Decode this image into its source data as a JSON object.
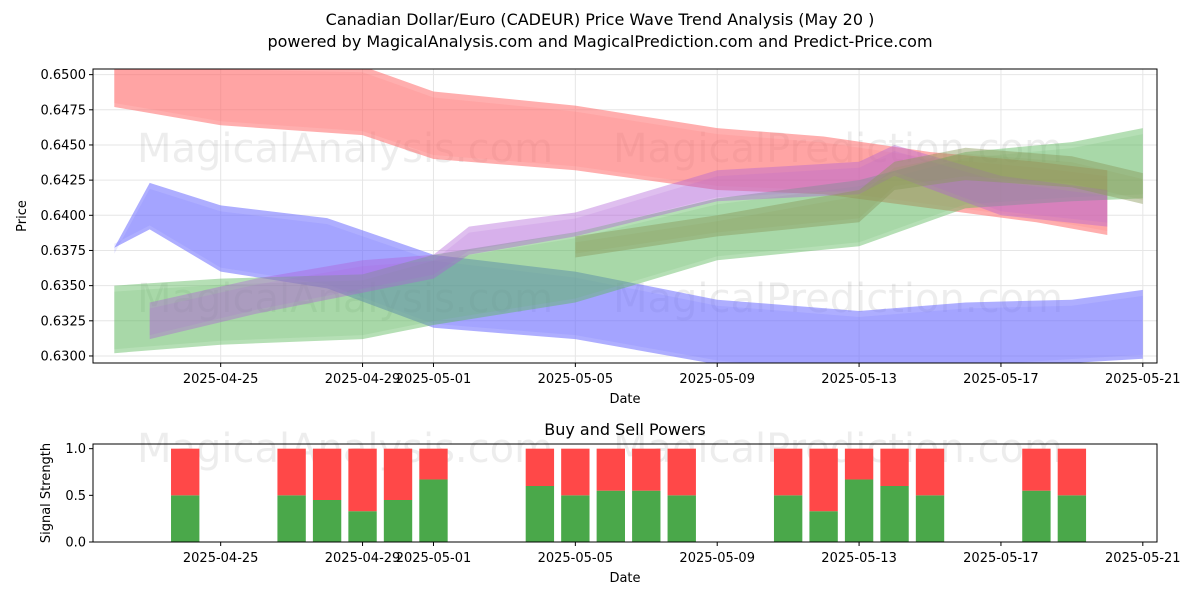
{
  "header": {
    "title": "Canadian Dollar/Euro (CADEUR) Price Wave Trend Analysis (May 20 )",
    "subtitle": "powered by MagicalAnalysis.com and MagicalPrediction.com and Predict-Price.com"
  },
  "watermarks": {
    "left": "MagicalAnalysis.com",
    "right": "MagicalPrediction.com"
  },
  "colors": {
    "red_band": "#ff6b6b",
    "blue_band": "#6b6bff",
    "green_band": "#5cb85c",
    "buy": "#4aa84a",
    "sell": "#ff4848"
  },
  "chart_data": [
    {
      "type": "area",
      "title": "Price Wave Trend Analysis",
      "xlabel": "Date",
      "ylabel": "Price",
      "xlim": [
        "2025-04-22",
        "2025-05-21"
      ],
      "ylim": [
        0.6295,
        0.6504
      ],
      "x_ticks": [
        "2025-04-25",
        "2025-04-29",
        "2025-05-01",
        "2025-05-05",
        "2025-05-09",
        "2025-05-13",
        "2025-05-17",
        "2025-05-21"
      ],
      "y_ticks": [
        "0.6300",
        "0.6325",
        "0.6350",
        "0.6375",
        "0.6400",
        "0.6425",
        "0.6450",
        "0.6475",
        "0.6500"
      ],
      "grid": true,
      "series": [
        {
          "name": "red-wave-upper",
          "color": "red",
          "opacity": 0.55,
          "x": [
            "2025-04-22",
            "2025-04-25",
            "2025-04-29",
            "2025-05-01",
            "2025-05-05",
            "2025-05-09",
            "2025-05-12",
            "2025-05-15",
            "2025-05-18",
            "2025-05-20"
          ],
          "upper": [
            0.6508,
            0.6508,
            0.6506,
            0.6488,
            0.6478,
            0.6462,
            0.6456,
            0.6445,
            0.6438,
            0.6432
          ],
          "lower": [
            0.6477,
            0.6464,
            0.6457,
            0.644,
            0.6432,
            0.6418,
            0.6415,
            0.6405,
            0.6395,
            0.6386
          ]
        },
        {
          "name": "blue-wave-down",
          "color": "blue",
          "opacity": 0.55,
          "x": [
            "2025-04-22",
            "2025-04-23",
            "2025-04-25",
            "2025-04-28",
            "2025-05-01",
            "2025-05-05",
            "2025-05-09",
            "2025-05-13",
            "2025-05-16",
            "2025-05-19",
            "2025-05-21"
          ],
          "upper": [
            0.6377,
            0.6423,
            0.6407,
            0.6398,
            0.6372,
            0.636,
            0.634,
            0.6332,
            0.6338,
            0.634,
            0.6347
          ],
          "lower": [
            0.6377,
            0.639,
            0.636,
            0.6348,
            0.632,
            0.6312,
            0.6294,
            0.6285,
            0.629,
            0.6295,
            0.6298
          ]
        },
        {
          "name": "green-wave-up",
          "color": "green",
          "opacity": 0.45,
          "x": [
            "2025-04-22",
            "2025-04-25",
            "2025-04-29",
            "2025-05-01",
            "2025-05-05",
            "2025-05-09",
            "2025-05-13",
            "2025-05-16",
            "2025-05-19",
            "2025-05-21"
          ],
          "upper": [
            0.635,
            0.6355,
            0.6358,
            0.6372,
            0.6388,
            0.6412,
            0.6425,
            0.6445,
            0.6452,
            0.6462
          ],
          "lower": [
            0.6302,
            0.6308,
            0.6312,
            0.6322,
            0.6338,
            0.6368,
            0.6378,
            0.6405,
            0.641,
            0.6412
          ]
        },
        {
          "name": "purple-wave-mid",
          "color": "purple",
          "opacity": 0.4,
          "x": [
            "2025-04-23",
            "2025-04-26",
            "2025-04-29",
            "2025-05-01",
            "2025-05-02",
            "2025-05-05",
            "2025-05-09",
            "2025-05-13",
            "2025-05-14",
            "2025-05-17",
            "2025-05-20"
          ],
          "upper": [
            0.6338,
            0.6355,
            0.6368,
            0.6372,
            0.6392,
            0.6402,
            0.6432,
            0.6438,
            0.645,
            0.6428,
            0.6418
          ],
          "lower": [
            0.6312,
            0.633,
            0.6345,
            0.6355,
            0.6372,
            0.6385,
            0.641,
            0.6415,
            0.6428,
            0.64,
            0.6392
          ]
        },
        {
          "name": "olive-wave-late",
          "color": "olive",
          "opacity": 0.45,
          "x": [
            "2025-05-05",
            "2025-05-09",
            "2025-05-13",
            "2025-05-14",
            "2025-05-16",
            "2025-05-19",
            "2025-05-21"
          ],
          "upper": [
            0.6385,
            0.64,
            0.6418,
            0.6438,
            0.6448,
            0.6442,
            0.643
          ],
          "lower": [
            0.637,
            0.6385,
            0.6395,
            0.6418,
            0.6425,
            0.642,
            0.6408
          ]
        }
      ]
    },
    {
      "type": "bar",
      "title": "Buy and Sell Powers",
      "xlabel": "Date",
      "ylabel": "Signal Strength",
      "ylim": [
        0,
        1.05
      ],
      "x_ticks": [
        "2025-04-25",
        "2025-04-29",
        "2025-05-01",
        "2025-05-05",
        "2025-05-09",
        "2025-05-13",
        "2025-05-17",
        "2025-05-21"
      ],
      "y_ticks": [
        "0.0",
        "0.5",
        "1.0"
      ],
      "categories": [
        "2025-04-24",
        "2025-04-27",
        "2025-04-28",
        "2025-04-29",
        "2025-04-30",
        "2025-05-01",
        "2025-05-04",
        "2025-05-05",
        "2025-05-06",
        "2025-05-07",
        "2025-05-08",
        "2025-05-11",
        "2025-05-12",
        "2025-05-13",
        "2025-05-14",
        "2025-05-15",
        "2025-05-18",
        "2025-05-19"
      ],
      "series": [
        {
          "name": "Buy",
          "values": [
            0.5,
            0.5,
            0.45,
            0.33,
            0.45,
            0.67,
            0.6,
            0.5,
            0.55,
            0.55,
            0.5,
            0.5,
            0.33,
            0.67,
            0.6,
            0.5,
            0.55,
            0.5
          ]
        },
        {
          "name": "Sell",
          "values": [
            0.5,
            0.5,
            0.55,
            0.67,
            0.55,
            0.33,
            0.4,
            0.5,
            0.45,
            0.45,
            0.5,
            0.5,
            0.67,
            0.33,
            0.4,
            0.5,
            0.45,
            0.5
          ]
        }
      ]
    }
  ]
}
